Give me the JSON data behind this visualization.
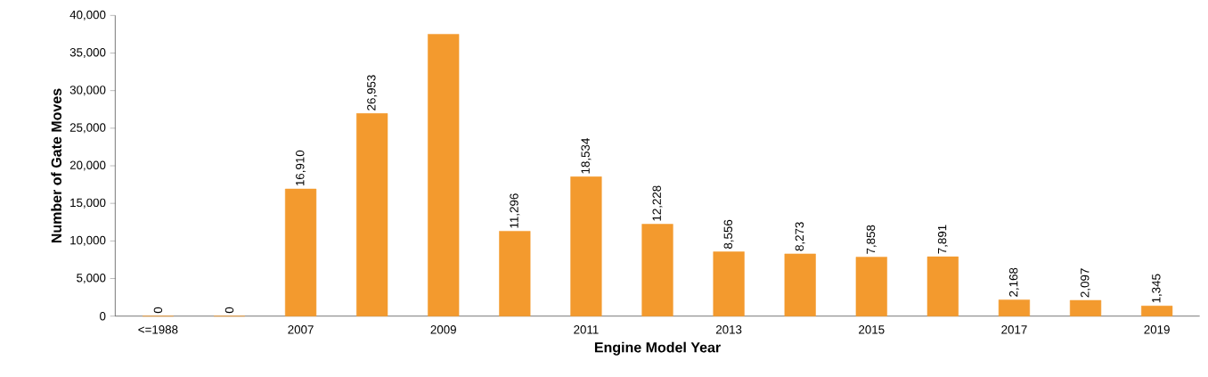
{
  "chart_data": {
    "type": "bar",
    "xlabel": "Engine Model Year",
    "ylabel": "Number of Gate Moves",
    "categories": [
      "<=1988",
      null,
      "2007",
      null,
      "2009",
      null,
      "2011",
      null,
      "2013",
      null,
      "2015",
      null,
      "2017",
      null,
      "2019"
    ],
    "values": [
      0,
      0,
      16910,
      26953,
      37500,
      11296,
      18534,
      12228,
      8556,
      8273,
      7858,
      7891,
      2168,
      2097,
      1345
    ],
    "value_labels": [
      "0",
      "0",
      "16,910",
      "26,953",
      null,
      "11,296",
      "18,534",
      "12,228",
      "8,556",
      "8,273",
      "7,858",
      "7,891",
      "2,168",
      "2,097",
      "1,345"
    ],
    "color": "#f39a2e",
    "ylim": [
      0,
      40000
    ],
    "yticks": [
      0,
      {
        "value": 5000,
        "label": "5,000"
      },
      {
        "value": 10000,
        "label": "10,000"
      },
      {
        "value": 15000,
        "label": "15,000"
      },
      {
        "value": 20000,
        "label": "20,000"
      },
      {
        "value": 25000,
        "label": "25,000"
      },
      {
        "value": 30000,
        "label": "30,000"
      },
      {
        "value": 35000,
        "label": "35,000"
      },
      {
        "value": 40000,
        "label": "40,000"
      }
    ],
    "grid": false
  }
}
